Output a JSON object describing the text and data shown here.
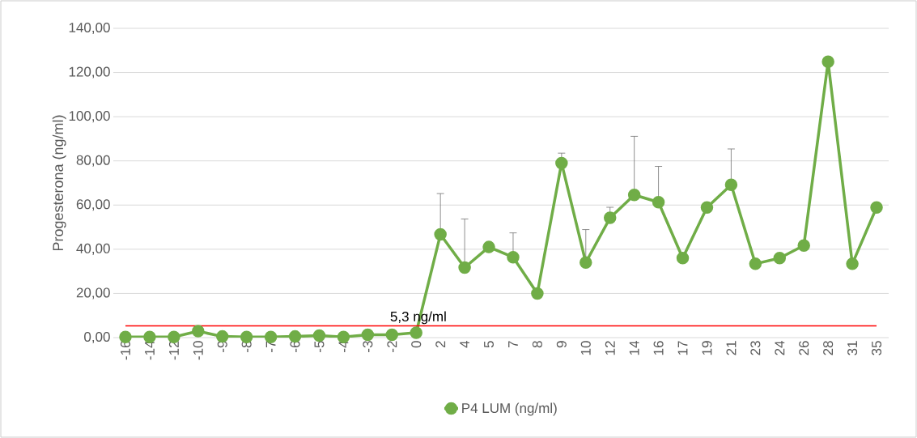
{
  "chart_data": {
    "type": "line",
    "ylabel": "Progesterona (ng/ml)",
    "categories": [
      "-16",
      "-14",
      "-12",
      "-10",
      "-9",
      "-8",
      "-7",
      "-6",
      "-5",
      "-4",
      "-3",
      "-2",
      "0",
      "2",
      "4",
      "5",
      "7",
      "8",
      "9",
      "10",
      "12",
      "14",
      "16",
      "17",
      "19",
      "21",
      "23",
      "24",
      "26",
      "28",
      "31",
      "35"
    ],
    "series": [
      {
        "name": "P4 LUM (ng/ml)",
        "color": "#70ad47",
        "values": [
          0.3,
          0.3,
          0.3,
          2.9,
          0.5,
          0.3,
          0.3,
          0.5,
          0.9,
          0.3,
          1.3,
          1.3,
          2.2,
          46.7,
          31.7,
          41,
          36.4,
          20,
          79,
          34,
          54.2,
          64.6,
          61.3,
          36,
          58.9,
          69.2,
          33.4,
          36,
          41.7,
          124.9,
          33.4,
          58.9
        ],
        "errors": [
          null,
          null,
          null,
          null,
          null,
          null,
          null,
          null,
          null,
          null,
          null,
          null,
          null,
          [
            46.7,
            65.2
          ],
          [
            31.7,
            53.7
          ],
          null,
          [
            36.4,
            47.4
          ],
          null,
          [
            79,
            83.5
          ],
          [
            34,
            48.9
          ],
          [
            54.2,
            59
          ],
          [
            64.6,
            91.1
          ],
          [
            61.3,
            77.5
          ],
          null,
          null,
          [
            69.2,
            85.4
          ],
          null,
          null,
          null,
          null,
          null,
          null
        ]
      }
    ],
    "ylim": [
      0,
      140
    ],
    "yticks": [
      {
        "value": 0,
        "label": "0,00"
      },
      {
        "value": 20,
        "label": "20,00"
      },
      {
        "value": 40,
        "label": "40,00"
      },
      {
        "value": 60,
        "label": "60,00"
      },
      {
        "value": 80,
        "label": "80,00"
      },
      {
        "value": 100,
        "label": "100,00"
      },
      {
        "value": 120,
        "label": "120,00"
      },
      {
        "value": 140,
        "label": "140,00"
      }
    ],
    "ref_lines": [
      {
        "axis": "y",
        "value": 5.3,
        "label": "5,3 ng/ml",
        "color": "#ff0000"
      }
    ],
    "grid": "y",
    "legend": "bottom",
    "marker": "circle",
    "line_style": "solid"
  }
}
